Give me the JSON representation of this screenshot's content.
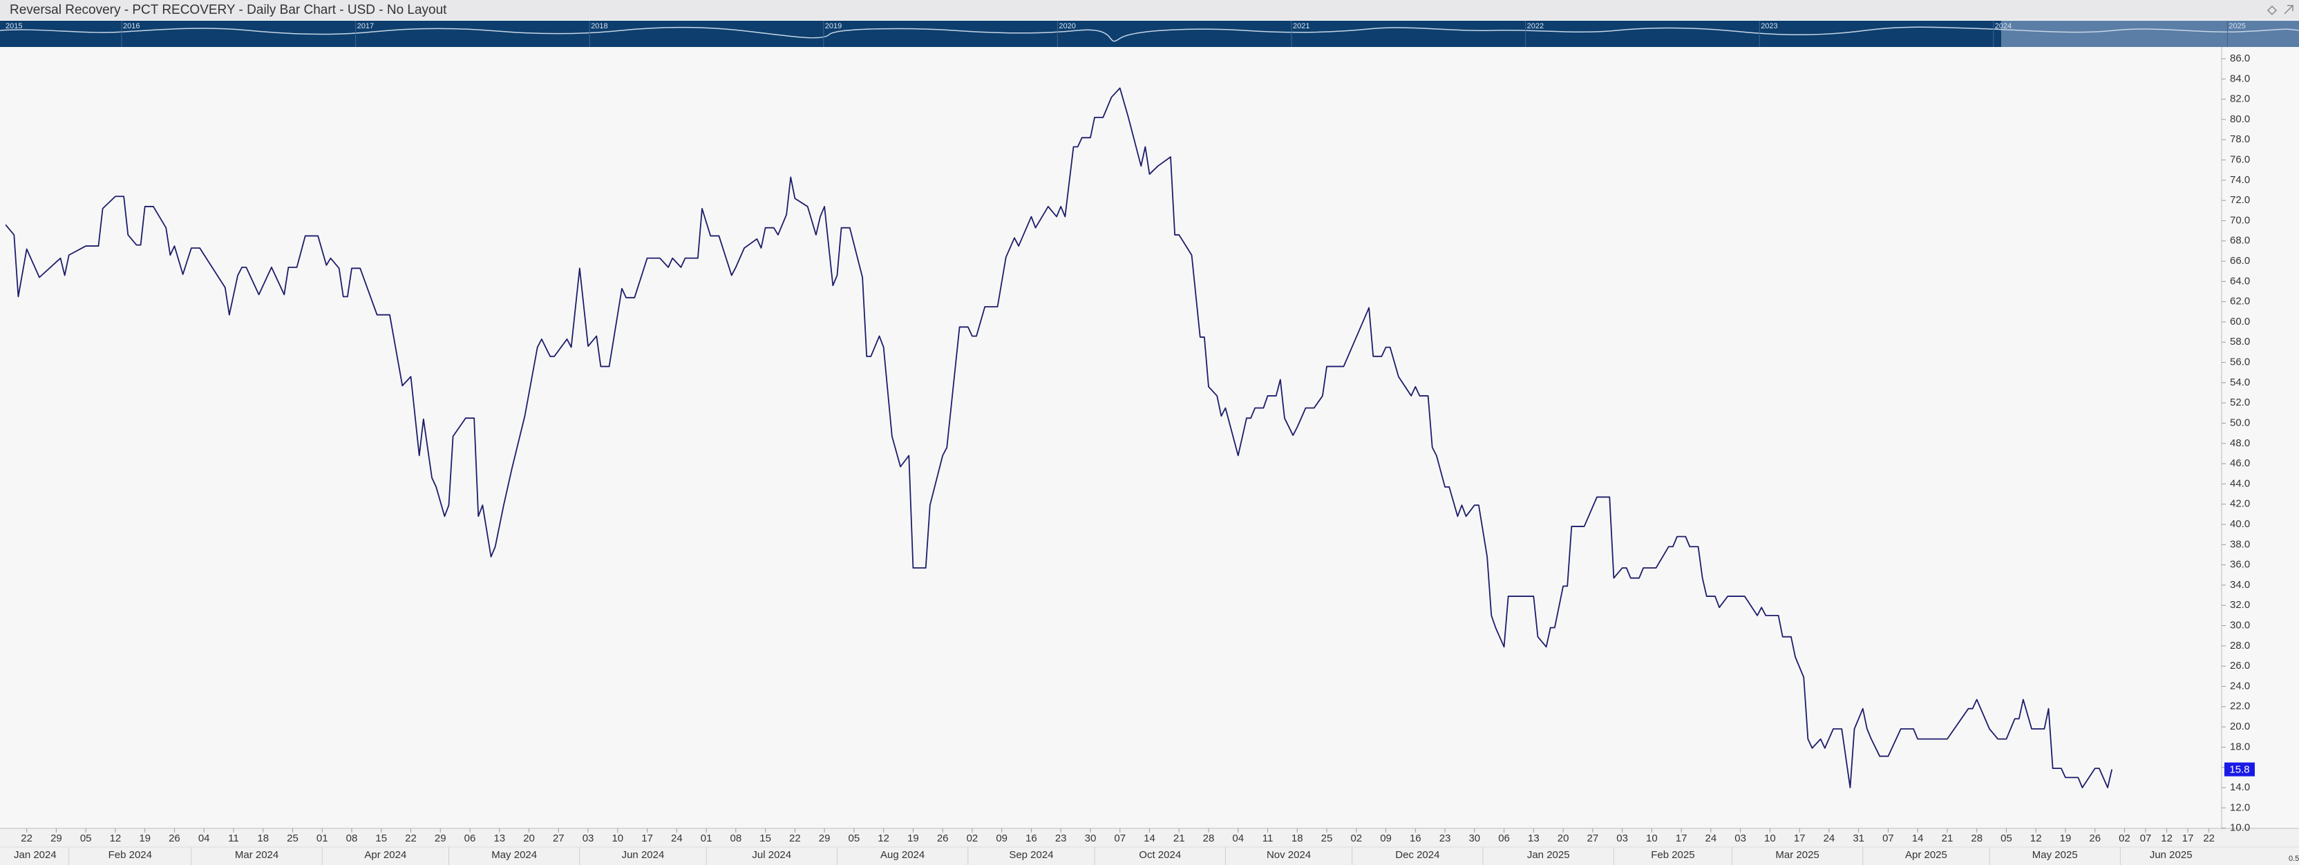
{
  "chart_data": {
    "type": "line",
    "title": "Reversal Recovery - PCT RECOVERY - Daily Bar Chart - USD - No Layout",
    "line_color": "#1c1c6b",
    "grid": false,
    "last_value": 15.8,
    "corner_label": "0.5",
    "nav_years": [
      2015,
      2016,
      2017,
      2018,
      2019,
      2020,
      2021,
      2022,
      2023,
      2024,
      2025
    ],
    "xlim": [
      "2024-01-16",
      "2025-06-25"
    ],
    "ylim": [
      10,
      86
    ],
    "yticks": [
      {
        "value": 86,
        "label": "86.0"
      },
      {
        "value": 84,
        "label": "84.0"
      },
      {
        "value": 82,
        "label": "82.0"
      },
      {
        "value": 80,
        "label": "80.0"
      },
      {
        "value": 78,
        "label": "78.0"
      },
      {
        "value": 76,
        "label": "76.0"
      },
      {
        "value": 74,
        "label": "74.0"
      },
      {
        "value": 72,
        "label": "72.0"
      },
      {
        "value": 70,
        "label": "70.0"
      },
      {
        "value": 68,
        "label": "68.0"
      },
      {
        "value": 66,
        "label": "66.0"
      },
      {
        "value": 64,
        "label": "64.0"
      },
      {
        "value": 62,
        "label": "62.0"
      },
      {
        "value": 60,
        "label": "60.0"
      },
      {
        "value": 58,
        "label": "58.0"
      },
      {
        "value": 56,
        "label": "56.0"
      },
      {
        "value": 54,
        "label": "54.0"
      },
      {
        "value": 52,
        "label": "52.0"
      },
      {
        "value": 50,
        "label": "50.0"
      },
      {
        "value": 48,
        "label": "48.0"
      },
      {
        "value": 46,
        "label": "46.0"
      },
      {
        "value": 44,
        "label": "44.0"
      },
      {
        "value": 42,
        "label": "42.0"
      },
      {
        "value": 40,
        "label": "40.0"
      },
      {
        "value": 38,
        "label": "38.0"
      },
      {
        "value": 36,
        "label": "36.0"
      },
      {
        "value": 34,
        "label": "34.0"
      },
      {
        "value": 32,
        "label": "32.0"
      },
      {
        "value": 30,
        "label": "30.0"
      },
      {
        "value": 28,
        "label": "28.0"
      },
      {
        "value": 26,
        "label": "26.0"
      },
      {
        "value": 24,
        "label": "24.0"
      },
      {
        "value": 22,
        "label": "22.0"
      },
      {
        "value": 20,
        "label": "20.0"
      },
      {
        "value": 18,
        "label": "18.0"
      },
      {
        "value": 16,
        "label": "16.0"
      },
      {
        "value": 14,
        "label": "14.0"
      },
      {
        "value": 12,
        "label": "12.0"
      },
      {
        "value": 10,
        "label": "10.0"
      }
    ],
    "xticks": [
      {
        "value": "2024-01-22",
        "label": "22"
      },
      {
        "value": "2024-01-29",
        "label": "29"
      },
      {
        "value": "2024-02-05",
        "label": "05"
      },
      {
        "value": "2024-02-12",
        "label": "12"
      },
      {
        "value": "2024-02-19",
        "label": "19"
      },
      {
        "value": "2024-02-26",
        "label": "26"
      },
      {
        "value": "2024-03-04",
        "label": "04"
      },
      {
        "value": "2024-03-11",
        "label": "11"
      },
      {
        "value": "2024-03-18",
        "label": "18"
      },
      {
        "value": "2024-03-25",
        "label": "25"
      },
      {
        "value": "2024-04-01",
        "label": "01"
      },
      {
        "value": "2024-04-08",
        "label": "08"
      },
      {
        "value": "2024-04-15",
        "label": "15"
      },
      {
        "value": "2024-04-22",
        "label": "22"
      },
      {
        "value": "2024-04-29",
        "label": "29"
      },
      {
        "value": "2024-05-06",
        "label": "06"
      },
      {
        "value": "2024-05-13",
        "label": "13"
      },
      {
        "value": "2024-05-20",
        "label": "20"
      },
      {
        "value": "2024-05-27",
        "label": "27"
      },
      {
        "value": "2024-06-03",
        "label": "03"
      },
      {
        "value": "2024-06-10",
        "label": "10"
      },
      {
        "value": "2024-06-17",
        "label": "17"
      },
      {
        "value": "2024-06-24",
        "label": "24"
      },
      {
        "value": "2024-07-01",
        "label": "01"
      },
      {
        "value": "2024-07-08",
        "label": "08"
      },
      {
        "value": "2024-07-15",
        "label": "15"
      },
      {
        "value": "2024-07-22",
        "label": "22"
      },
      {
        "value": "2024-07-29",
        "label": "29"
      },
      {
        "value": "2024-08-05",
        "label": "05"
      },
      {
        "value": "2024-08-12",
        "label": "12"
      },
      {
        "value": "2024-08-19",
        "label": "19"
      },
      {
        "value": "2024-08-26",
        "label": "26"
      },
      {
        "value": "2024-09-02",
        "label": "02"
      },
      {
        "value": "2024-09-09",
        "label": "09"
      },
      {
        "value": "2024-09-16",
        "label": "16"
      },
      {
        "value": "2024-09-23",
        "label": "23"
      },
      {
        "value": "2024-09-30",
        "label": "30"
      },
      {
        "value": "2024-10-07",
        "label": "07"
      },
      {
        "value": "2024-10-14",
        "label": "14"
      },
      {
        "value": "2024-10-21",
        "label": "21"
      },
      {
        "value": "2024-10-28",
        "label": "28"
      },
      {
        "value": "2024-11-04",
        "label": "04"
      },
      {
        "value": "2024-11-11",
        "label": "11"
      },
      {
        "value": "2024-11-18",
        "label": "18"
      },
      {
        "value": "2024-11-25",
        "label": "25"
      },
      {
        "value": "2024-12-02",
        "label": "02"
      },
      {
        "value": "2024-12-09",
        "label": "09"
      },
      {
        "value": "2024-12-16",
        "label": "16"
      },
      {
        "value": "2024-12-23",
        "label": "23"
      },
      {
        "value": "2024-12-30",
        "label": "30"
      },
      {
        "value": "2025-01-06",
        "label": "06"
      },
      {
        "value": "2025-01-13",
        "label": "13"
      },
      {
        "value": "2025-01-20",
        "label": "20"
      },
      {
        "value": "2025-01-27",
        "label": "27"
      },
      {
        "value": "2025-02-03",
        "label": "03"
      },
      {
        "value": "2025-02-10",
        "label": "10"
      },
      {
        "value": "2025-02-17",
        "label": "17"
      },
      {
        "value": "2025-02-24",
        "label": "24"
      },
      {
        "value": "2025-03-03",
        "label": "03"
      },
      {
        "value": "2025-03-10",
        "label": "10"
      },
      {
        "value": "2025-03-17",
        "label": "17"
      },
      {
        "value": "2025-03-24",
        "label": "24"
      },
      {
        "value": "2025-03-31",
        "label": "31"
      },
      {
        "value": "2025-04-07",
        "label": "07"
      },
      {
        "value": "2025-04-14",
        "label": "14"
      },
      {
        "value": "2025-04-21",
        "label": "21"
      },
      {
        "value": "2025-04-28",
        "label": "28"
      },
      {
        "value": "2025-05-05",
        "label": "05"
      },
      {
        "value": "2025-05-12",
        "label": "12"
      },
      {
        "value": "2025-05-19",
        "label": "19"
      },
      {
        "value": "2025-05-26",
        "label": "26"
      },
      {
        "value": "2025-06-02",
        "label": "02"
      },
      {
        "value": "2025-06-07",
        "label": "07"
      },
      {
        "value": "2025-06-12",
        "label": "12"
      },
      {
        "value": "2025-06-17",
        "label": "17"
      },
      {
        "value": "2025-06-22",
        "label": "22"
      }
    ],
    "month_labels": [
      {
        "value": "2024-01",
        "label": "Jan 2024"
      },
      {
        "value": "2024-02",
        "label": "Feb 2024"
      },
      {
        "value": "2024-03",
        "label": "Mar 2024"
      },
      {
        "value": "2024-04",
        "label": "Apr 2024"
      },
      {
        "value": "2024-05",
        "label": "May 2024"
      },
      {
        "value": "2024-06",
        "label": "Jun 2024"
      },
      {
        "value": "2024-07",
        "label": "Jul 2024"
      },
      {
        "value": "2024-08",
        "label": "Aug 2024"
      },
      {
        "value": "2024-09",
        "label": "Sep 2024"
      },
      {
        "value": "2024-10",
        "label": "Oct 2024"
      },
      {
        "value": "2024-11",
        "label": "Nov 2024"
      },
      {
        "value": "2024-12",
        "label": "Dec 2024"
      },
      {
        "value": "2025-01",
        "label": "Jan 2025"
      },
      {
        "value": "2025-02",
        "label": "Feb 2025"
      },
      {
        "value": "2025-03",
        "label": "Mar 2025"
      },
      {
        "value": "2025-04",
        "label": "Apr 2025"
      },
      {
        "value": "2025-05",
        "label": "May 2025"
      },
      {
        "value": "2025-06",
        "label": "Jun 2025"
      }
    ],
    "x": [
      "2024-01-17",
      "2024-01-19",
      "2024-01-20",
      "2024-01-22",
      "2024-01-25",
      "2024-01-30",
      "2024-01-31",
      "2024-02-01",
      "2024-02-05",
      "2024-02-08",
      "2024-02-09",
      "2024-02-12",
      "2024-02-14",
      "2024-02-15",
      "2024-02-17",
      "2024-02-18",
      "2024-02-19",
      "2024-02-21",
      "2024-02-24",
      "2024-02-25",
      "2024-02-26",
      "2024-02-28",
      "2024-03-01",
      "2024-03-03",
      "2024-03-09",
      "2024-03-10",
      "2024-03-12",
      "2024-03-13",
      "2024-03-14",
      "2024-03-17",
      "2024-03-20",
      "2024-03-23",
      "2024-03-24",
      "2024-03-26",
      "2024-03-28",
      "2024-03-31",
      "2024-04-02",
      "2024-04-03",
      "2024-04-05",
      "2024-04-06",
      "2024-04-07",
      "2024-04-08",
      "2024-04-10",
      "2024-04-14",
      "2024-04-17",
      "2024-04-20",
      "2024-04-22",
      "2024-04-24",
      "2024-04-25",
      "2024-04-27",
      "2024-04-28",
      "2024-04-30",
      "2024-05-01",
      "2024-05-02",
      "2024-05-05",
      "2024-05-07",
      "2024-05-08",
      "2024-05-09",
      "2024-05-11",
      "2024-05-12",
      "2024-05-14",
      "2024-05-16",
      "2024-05-19",
      "2024-05-22",
      "2024-05-23",
      "2024-05-25",
      "2024-05-26",
      "2024-05-29",
      "2024-05-30",
      "2024-06-01",
      "2024-06-03",
      "2024-06-05",
      "2024-06-06",
      "2024-06-08",
      "2024-06-11",
      "2024-06-12",
      "2024-06-14",
      "2024-06-17",
      "2024-06-20",
      "2024-06-22",
      "2024-06-23",
      "2024-06-25",
      "2024-06-26",
      "2024-06-29",
      "2024-06-30",
      "2024-07-02",
      "2024-07-04",
      "2024-07-07",
      "2024-07-08",
      "2024-07-10",
      "2024-07-13",
      "2024-07-14",
      "2024-07-15",
      "2024-07-17",
      "2024-07-18",
      "2024-07-20",
      "2024-07-21",
      "2024-07-22",
      "2024-07-25",
      "2024-07-27",
      "2024-07-28",
      "2024-07-29",
      "2024-07-31",
      "2024-08-01",
      "2024-08-02",
      "2024-08-04",
      "2024-08-07",
      "2024-08-08",
      "2024-08-09",
      "2024-08-11",
      "2024-08-12",
      "2024-08-14",
      "2024-08-16",
      "2024-08-18",
      "2024-08-19",
      "2024-08-22",
      "2024-08-23",
      "2024-08-26",
      "2024-08-27",
      "2024-08-30",
      "2024-09-01",
      "2024-09-02",
      "2024-09-03",
      "2024-09-05",
      "2024-09-08",
      "2024-09-10",
      "2024-09-12",
      "2024-09-13",
      "2024-09-16",
      "2024-09-17",
      "2024-09-20",
      "2024-09-22",
      "2024-09-23",
      "2024-09-24",
      "2024-09-26",
      "2024-09-27",
      "2024-09-28",
      "2024-09-30",
      "2024-10-01",
      "2024-10-03",
      "2024-10-05",
      "2024-10-07",
      "2024-10-09",
      "2024-10-12",
      "2024-10-13",
      "2024-10-14",
      "2024-10-16",
      "2024-10-19",
      "2024-10-20",
      "2024-10-21",
      "2024-10-24",
      "2024-10-26",
      "2024-10-27",
      "2024-10-28",
      "2024-10-30",
      "2024-10-31",
      "2024-11-01",
      "2024-11-04",
      "2024-11-06",
      "2024-11-07",
      "2024-11-08",
      "2024-11-10",
      "2024-11-11",
      "2024-11-13",
      "2024-11-14",
      "2024-11-15",
      "2024-11-17",
      "2024-11-18",
      "2024-11-20",
      "2024-11-22",
      "2024-11-24",
      "2024-11-25",
      "2024-11-29",
      "2024-12-02",
      "2024-12-05",
      "2024-12-06",
      "2024-12-08",
      "2024-12-09",
      "2024-12-10",
      "2024-12-12",
      "2024-12-15",
      "2024-12-16",
      "2024-12-17",
      "2024-12-19",
      "2024-12-20",
      "2024-12-21",
      "2024-12-23",
      "2024-12-24",
      "2024-12-26",
      "2024-12-27",
      "2024-12-28",
      "2024-12-30",
      "2024-12-31",
      "2025-01-02",
      "2025-01-03",
      "2025-01-04",
      "2025-01-06",
      "2025-01-07",
      "2025-01-13",
      "2025-01-14",
      "2025-01-16",
      "2025-01-17",
      "2025-01-18",
      "2025-01-20",
      "2025-01-21",
      "2025-01-22",
      "2025-01-25",
      "2025-01-28",
      "2025-01-31",
      "2025-02-01",
      "2025-02-03",
      "2025-02-04",
      "2025-02-05",
      "2025-02-07",
      "2025-02-08",
      "2025-02-11",
      "2025-02-14",
      "2025-02-15",
      "2025-02-16",
      "2025-02-18",
      "2025-02-19",
      "2025-02-21",
      "2025-02-22",
      "2025-02-23",
      "2025-02-25",
      "2025-02-26",
      "2025-02-28",
      "2025-03-04",
      "2025-03-07",
      "2025-03-08",
      "2025-03-09",
      "2025-03-12",
      "2025-03-13",
      "2025-03-15",
      "2025-03-16",
      "2025-03-18",
      "2025-03-19",
      "2025-03-20",
      "2025-03-22",
      "2025-03-23",
      "2025-03-25",
      "2025-03-27",
      "2025-03-29",
      "2025-03-30",
      "2025-04-01",
      "2025-04-02",
      "2025-04-03",
      "2025-04-05",
      "2025-04-07",
      "2025-04-10",
      "2025-04-13",
      "2025-04-14",
      "2025-04-21",
      "2025-04-26",
      "2025-04-27",
      "2025-04-28",
      "2025-05-01",
      "2025-05-03",
      "2025-05-05",
      "2025-05-07",
      "2025-05-08",
      "2025-05-09",
      "2025-05-11",
      "2025-05-14",
      "2025-05-15",
      "2025-05-16",
      "2025-05-18",
      "2025-05-19",
      "2025-05-22",
      "2025-05-23",
      "2025-05-26",
      "2025-05-27",
      "2025-05-29",
      "2025-05-30"
    ],
    "values": [
      69.6,
      68.6,
      62.5,
      67.2,
      64.4,
      66.3,
      64.6,
      66.6,
      67.5,
      67.5,
      71.2,
      72.4,
      72.4,
      68.6,
      67.6,
      67.6,
      71.4,
      71.4,
      69.3,
      66.6,
      67.5,
      64.7,
      67.3,
      67.3,
      63.4,
      60.7,
      64.6,
      65.4,
      65.4,
      62.7,
      65.4,
      62.7,
      65.4,
      65.4,
      68.5,
      68.5,
      65.6,
      66.3,
      65.3,
      62.5,
      62.5,
      65.3,
      65.3,
      60.7,
      60.7,
      53.7,
      54.6,
      46.8,
      50.4,
      44.6,
      43.7,
      40.8,
      41.9,
      48.7,
      50.5,
      50.5,
      40.8,
      41.9,
      36.8,
      37.8,
      41.9,
      45.6,
      50.7,
      57.5,
      58.3,
      56.6,
      56.6,
      58.3,
      57.5,
      65.3,
      57.6,
      58.6,
      55.6,
      55.6,
      63.3,
      62.4,
      62.4,
      66.3,
      66.3,
      65.4,
      66.3,
      65.4,
      66.3,
      66.3,
      71.2,
      68.5,
      68.5,
      64.6,
      65.4,
      67.3,
      68.2,
      67.3,
      69.3,
      69.3,
      68.6,
      70.6,
      74.3,
      72.2,
      71.4,
      68.6,
      70.4,
      71.4,
      63.6,
      64.6,
      69.3,
      69.3,
      64.4,
      56.6,
      56.6,
      58.6,
      57.5,
      48.7,
      45.7,
      46.8,
      35.7,
      35.7,
      41.9,
      46.8,
      47.6,
      59.5,
      59.5,
      58.6,
      58.6,
      61.5,
      61.5,
      66.4,
      68.3,
      67.5,
      70.4,
      69.3,
      71.4,
      70.4,
      71.4,
      70.4,
      77.3,
      77.3,
      78.2,
      78.2,
      80.2,
      80.2,
      82.2,
      83.1,
      80.2,
      75.4,
      77.3,
      74.6,
      75.4,
      76.3,
      68.6,
      68.6,
      66.6,
      58.5,
      58.5,
      53.6,
      52.7,
      50.7,
      51.5,
      46.8,
      50.5,
      50.5,
      51.5,
      51.5,
      52.7,
      52.7,
      54.3,
      50.5,
      48.8,
      49.6,
      51.5,
      51.5,
      52.7,
      55.6,
      55.6,
      58.5,
      61.4,
      56.6,
      56.6,
      57.5,
      57.5,
      54.6,
      52.7,
      53.6,
      52.7,
      52.7,
      47.6,
      46.8,
      43.7,
      43.7,
      40.8,
      41.9,
      40.8,
      41.9,
      41.9,
      36.8,
      31.0,
      29.8,
      27.9,
      32.9,
      32.9,
      28.9,
      27.9,
      29.8,
      29.8,
      33.9,
      33.9,
      39.8,
      39.8,
      42.7,
      42.7,
      34.7,
      35.7,
      35.7,
      34.7,
      34.7,
      35.7,
      35.7,
      37.8,
      37.8,
      38.8,
      38.8,
      37.8,
      37.8,
      34.7,
      32.9,
      32.9,
      31.8,
      32.9,
      32.9,
      31.0,
      31.8,
      31.0,
      31.0,
      28.9,
      28.9,
      26.9,
      24.9,
      18.8,
      17.9,
      18.8,
      17.9,
      19.8,
      19.8,
      14.0,
      19.8,
      21.8,
      19.8,
      18.8,
      17.1,
      17.1,
      19.8,
      19.8,
      18.8,
      18.8,
      21.8,
      21.8,
      22.7,
      19.8,
      18.8,
      18.8,
      20.8,
      20.8,
      22.7,
      19.8,
      19.8,
      21.8,
      15.9,
      15.9,
      15.0,
      15.0,
      14.0,
      15.9,
      15.9,
      14.0,
      15.8
    ]
  }
}
